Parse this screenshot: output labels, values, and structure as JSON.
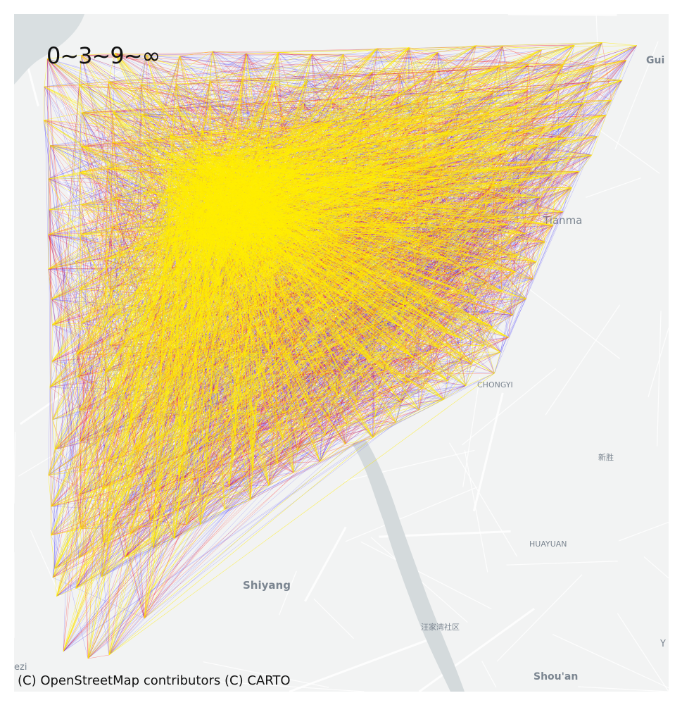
{
  "legend": {
    "label": "0~3~9~∞"
  },
  "attribution": "(C) OpenStreetMap contributors (C) CARTO",
  "place_labels": {
    "gui": "Gui",
    "tianma": "Tianma",
    "chongyi": "CHONGYI",
    "xinsheng": "新胜",
    "huayuan": "HUAYUAN",
    "shiyang": "Shiyang",
    "wangjiawan": "汪家湾社区",
    "shouan": "Shou'an",
    "ezi": "ezi",
    "y": "Y"
  },
  "colors": {
    "basemap": "#f2f3f3",
    "water": "#d4dadc",
    "road": "#ffffff",
    "tier_low": "#2a1bff",
    "tier_mid": "#ff1a1a",
    "tier_high": "#ffee00"
  }
}
